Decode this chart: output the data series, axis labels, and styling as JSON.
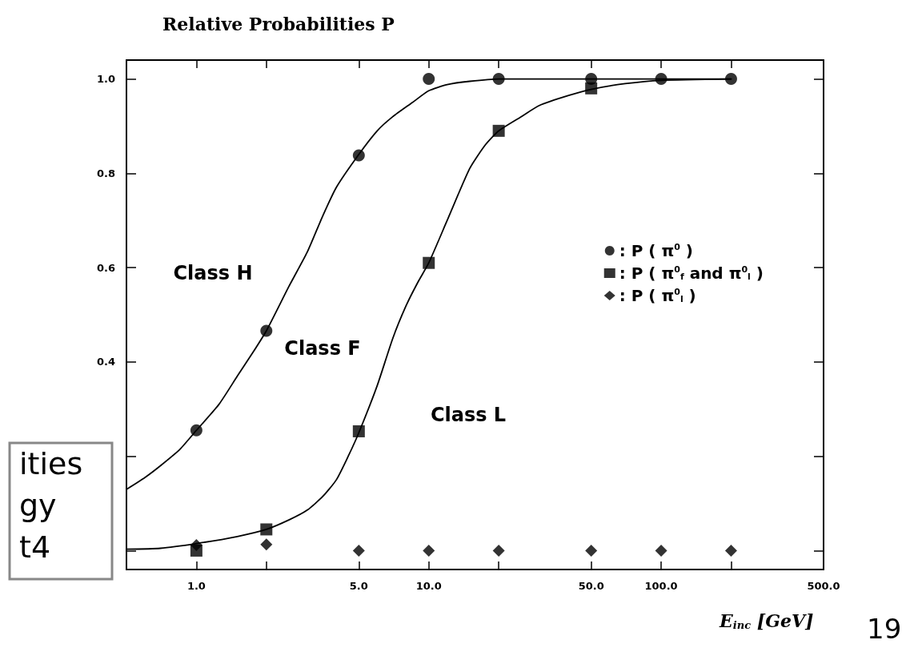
{
  "chart_data": {
    "type": "scatter",
    "title": "Relative Probabilities P",
    "xlabel": "E$_{inc}$ [GeV]",
    "log": "x",
    "xlim": [
      0.5,
      500
    ],
    "ylim": [
      -0.04,
      1.04
    ],
    "xticks": [
      {
        "value": 1,
        "label": "1.0"
      },
      {
        "value": 2,
        "label": null
      },
      {
        "value": 5,
        "label": "5.0"
      },
      {
        "value": 10,
        "label": "10.0"
      },
      {
        "value": 20,
        "label": null
      },
      {
        "value": 50,
        "label": "50.0"
      },
      {
        "value": 100,
        "label": "100.0"
      },
      {
        "value": 200,
        "label": null
      },
      {
        "value": 500,
        "label": "500.0"
      }
    ],
    "yticks": [
      {
        "value": 0,
        "label": null
      },
      {
        "value": 0.2,
        "label": null
      },
      {
        "value": 0.4,
        "label": "0.4"
      },
      {
        "value": 0.6,
        "label": "0.6"
      },
      {
        "value": 0.8,
        "label": "0.8"
      },
      {
        "value": 1.0,
        "label": "1.0"
      }
    ],
    "grid": false,
    "legend": "right",
    "series": [
      {
        "name": ": P ( π$^{0}$ )",
        "color": "#000000",
        "marker": "circle",
        "x": [
          1,
          2,
          5,
          10,
          20,
          50,
          100,
          200
        ],
        "values": [
          0.255,
          0.466,
          0.838,
          1.0,
          1.0,
          1.0,
          1.0,
          1.0
        ]
      },
      {
        "name": ": P ( π$^{0}$$_{f}$ and π$^{0}$$_{l}$ )",
        "color": "#000000",
        "marker": "square",
        "x": [
          1,
          2,
          5,
          10,
          20,
          50
        ],
        "values": [
          0.0,
          0.045,
          0.253,
          0.61,
          0.89,
          0.98
        ]
      },
      {
        "name": ": P ( π$^{0}$$_{l}$ )",
        "color": "#000000",
        "marker": "diamond",
        "x": [
          1,
          2,
          5,
          10,
          20,
          50,
          100,
          200
        ],
        "values": [
          0.012,
          0.013,
          0.0,
          0.0,
          0.0,
          0.0,
          0.0,
          0.0
        ]
      },
      {
        "type": "line",
        "color": "#000000",
        "marker": "none",
        "x": [
          0.5,
          0.6,
          0.7,
          0.85,
          1,
          1.25,
          1.5,
          1.75,
          2,
          2.5,
          3,
          3.5,
          4,
          5,
          6,
          7,
          8.5,
          10,
          12,
          15,
          20,
          50,
          200
        ],
        "values": [
          0.13,
          0.155,
          0.18,
          0.215,
          0.255,
          0.31,
          0.37,
          0.42,
          0.466,
          0.56,
          0.633,
          0.71,
          0.77,
          0.84,
          0.89,
          0.92,
          0.95,
          0.975,
          0.988,
          0.995,
          1.0,
          1.0,
          1.0
        ]
      },
      {
        "type": "line",
        "color": "#000000",
        "marker": "none",
        "x": [
          0.5,
          0.7,
          1,
          1.5,
          2,
          2.5,
          3,
          3.5,
          4,
          4.5,
          5,
          6,
          7,
          8,
          9,
          10,
          12,
          15,
          17.5,
          20,
          25,
          30,
          40,
          50,
          70,
          100,
          200
        ],
        "values": [
          0.003,
          0.005,
          0.015,
          0.03,
          0.045,
          0.065,
          0.086,
          0.115,
          0.15,
          0.2,
          0.25,
          0.35,
          0.45,
          0.52,
          0.57,
          0.61,
          0.7,
          0.81,
          0.86,
          0.89,
          0.92,
          0.944,
          0.965,
          0.978,
          0.99,
          0.997,
          1.0
        ]
      }
    ],
    "annotations": [
      "Class H",
      "Class F",
      "Class L",
      "ities",
      "gy",
      "t4",
      "19"
    ]
  }
}
